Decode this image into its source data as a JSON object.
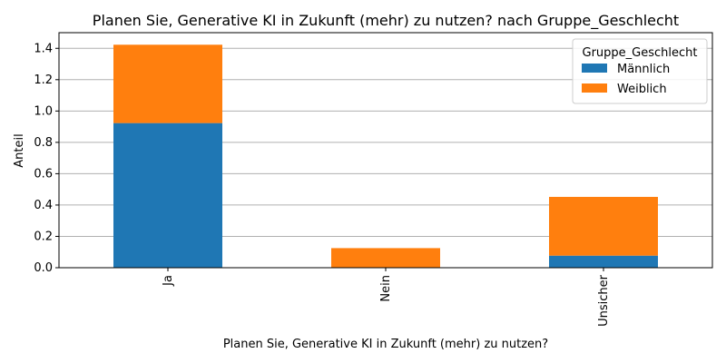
{
  "chart_data": {
    "type": "bar",
    "stacked": true,
    "title": "Planen Sie, Generative KI in Zukunft (mehr) zu nutzen? nach Gruppe_Geschlecht",
    "xlabel": "Planen Sie, Generative KI in Zukunft (mehr) zu nutzen?",
    "ylabel": "Anteil",
    "categories": [
      "Ja",
      "Nein",
      "Unsicher"
    ],
    "series": [
      {
        "name": "Männlich",
        "color": "#1f77b4",
        "values": [
          0.923,
          0.0,
          0.077
        ]
      },
      {
        "name": "Weiblich",
        "color": "#ff7f0e",
        "values": [
          0.5,
          0.125,
          0.375
        ]
      }
    ],
    "ylim": [
      0,
      1.5
    ],
    "yticks": [
      0.0,
      0.2,
      0.4,
      0.6,
      0.8,
      1.0,
      1.2,
      1.4
    ],
    "ytick_labels": [
      "0.0",
      "0.2",
      "0.4",
      "0.6",
      "0.8",
      "1.0",
      "1.2",
      "1.4"
    ],
    "grid": "y",
    "legend": {
      "title": "Gruppe_Geschlecht",
      "placement": "top-right"
    }
  }
}
